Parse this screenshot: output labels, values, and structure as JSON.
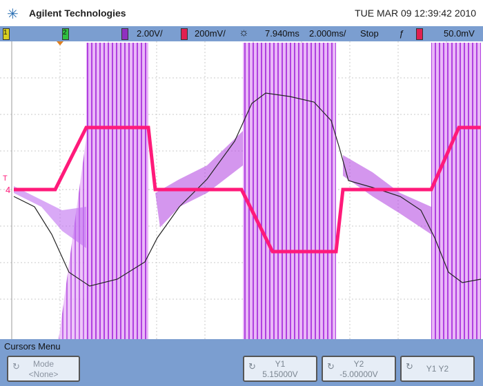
{
  "header": {
    "brand": "Agilent Technologies",
    "datetime": "TUE MAR 09 12:39:42 2010",
    "logo_icon": "agilent-spark-icon"
  },
  "status_bar": {
    "ch1": "1",
    "ch2": "2",
    "ch3_scale": "2.00V/",
    "ch4_scale": "200mV/",
    "trigger_icon": "sun-icon",
    "time_delay": "7.940ms",
    "time_scale": "2.000ms/",
    "run_state": "Stop",
    "trigger_slope_icon": "rising-edge-icon",
    "trigger_level": "50.0mV"
  },
  "colors": {
    "ch3": "#b040e0",
    "ch4": "#ff1a7a",
    "math": "#222222",
    "softkey_bar": "#7b9ed0"
  },
  "markers": {
    "ch4_marker": "4",
    "trigger_marker": "T"
  },
  "menu": {
    "title": "Cursors Menu",
    "softkeys": [
      {
        "label": "Mode",
        "value": "<None>"
      },
      {
        "label": "Y1",
        "value": "5.15000V"
      },
      {
        "label": "Y2",
        "value": "-5.00000V"
      },
      {
        "label": "Y1 Y2",
        "value": ""
      }
    ]
  }
}
